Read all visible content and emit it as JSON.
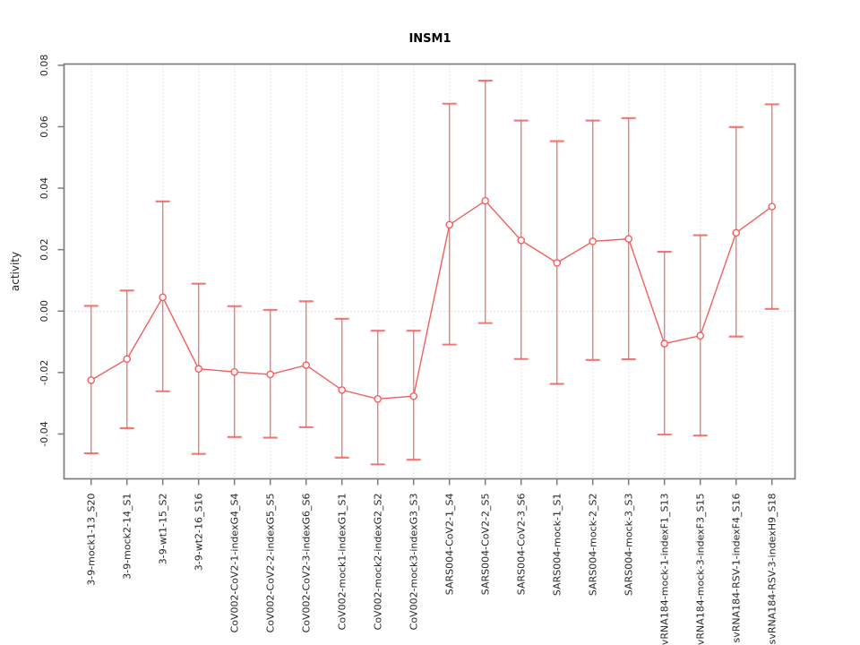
{
  "figure": {
    "title": "INSM1",
    "ylabel": "activity"
  },
  "chart_data": {
    "type": "line",
    "title": "INSM1",
    "xlabel": "",
    "ylabel": "activity",
    "ylim": [
      -0.0546,
      0.0804
    ],
    "yticks": [
      -0.04,
      -0.02,
      0.0,
      0.02,
      0.04,
      0.06,
      0.08
    ],
    "ytick_labels": [
      "-0.04",
      "-0.02",
      "0.00",
      "0.02",
      "0.04",
      "0.06",
      "0.08"
    ],
    "grid": {
      "vertical_gridlines": true,
      "horizontal_gridlines": false,
      "zero_reference_line": true
    },
    "legend": "none",
    "marker": "open-circle",
    "categories": [
      "3-9-mock1-13_S20",
      "3-9-mock2-14_S1",
      "3-9-wt1-15_S2",
      "3-9-wt2-16_S16",
      "CoV002-CoV2-1-indexG4_S4",
      "CoV002-CoV2-2-indexG5_S5",
      "CoV002-CoV2-3-indexG6_S6",
      "CoV002-mock1-indexG1_S1",
      "CoV002-mock2-indexG2_S2",
      "CoV002-mock3-indexG3_S3",
      "SARS004-CoV2-1_S4",
      "SARS004-CoV2-2_S5",
      "SARS004-CoV2-3_S6",
      "SARS004-mock-1_S1",
      "SARS004-mock-2_S2",
      "SARS004-mock-3_S3",
      "svRNA184-mock-1-indexF1_S13",
      "svRNA184-mock-3-indexF3_S15",
      "svRNA184-RSV-1-indexF4_S16",
      "svRNA184-RSV-3-indexH9_S18"
    ],
    "series": [
      {
        "name": "activity",
        "values": [
          -0.0225,
          -0.0156,
          0.0045,
          -0.0188,
          -0.0198,
          -0.0206,
          -0.0176,
          -0.0257,
          -0.0286,
          -0.0277,
          0.0281,
          0.0359,
          0.023,
          0.0157,
          0.0227,
          0.0235,
          -0.0106,
          -0.008,
          0.0255,
          0.034
        ],
        "error_low": [
          -0.0463,
          -0.0381,
          -0.0261,
          -0.0465,
          -0.041,
          -0.0412,
          -0.0378,
          -0.0477,
          -0.0499,
          -0.0484,
          -0.0109,
          -0.0039,
          -0.0156,
          -0.0237,
          -0.0159,
          -0.0157,
          -0.0402,
          -0.0405,
          -0.0083,
          0.0007
        ],
        "error_high": [
          0.0017,
          0.0067,
          0.0357,
          0.0089,
          0.0016,
          0.0004,
          0.0032,
          -0.0025,
          -0.0064,
          -0.0064,
          0.0675,
          0.075,
          0.062,
          0.0553,
          0.062,
          0.0628,
          0.0193,
          0.0247,
          0.0599,
          0.0673
        ]
      }
    ],
    "colors": {
      "series": "#f25f5f",
      "grid": "#d8d8d8",
      "zero_line": "#cfcfcf",
      "frame": "#7d7d7d",
      "text": "#262626",
      "title": "#000000",
      "background": "#ffffff"
    }
  }
}
